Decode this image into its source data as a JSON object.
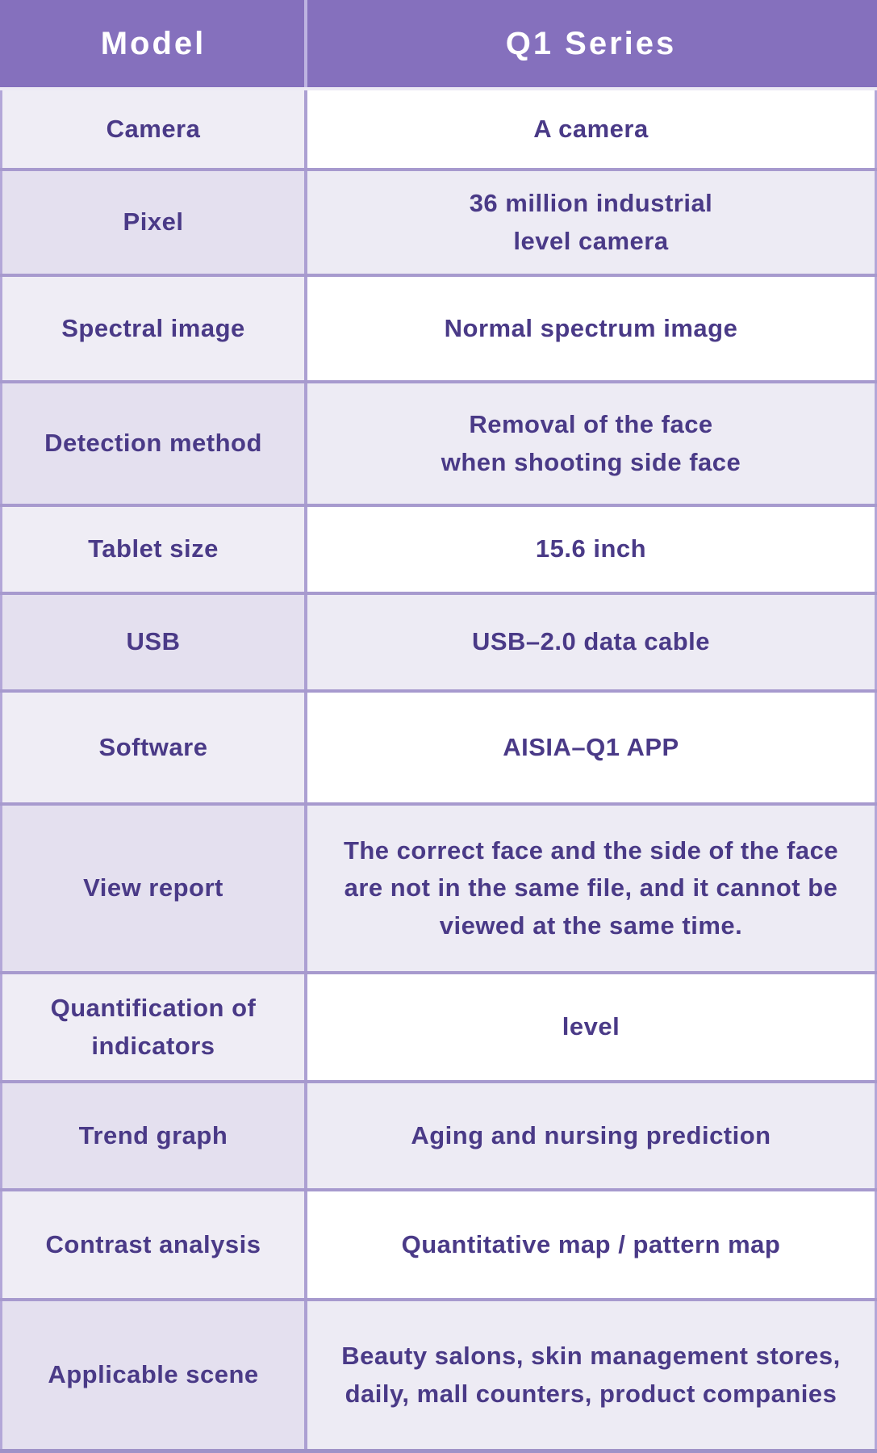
{
  "table": {
    "header": {
      "model_label": "Model",
      "series_label": "Q1 Series"
    },
    "rows": [
      {
        "label": "Camera",
        "value": "A camera"
      },
      {
        "label": "Pixel",
        "value": "36 million industrial\nlevel camera"
      },
      {
        "label": "Spectral image",
        "value": "Normal spectrum image"
      },
      {
        "label": "Detection method",
        "value": "Removal of the face\nwhen shooting side face"
      },
      {
        "label": "Tablet size",
        "value": "15.6 inch"
      },
      {
        "label": "USB",
        "value": "USB–2.0 data cable"
      },
      {
        "label": "Software",
        "value": "AISIA–Q1 APP"
      },
      {
        "label": "View report",
        "value": "The correct face and the side of the face are not in the same file, and it cannot be viewed at the same time."
      },
      {
        "label": "Quantification of\nindicators",
        "value": "level"
      },
      {
        "label": "Trend graph",
        "value": "Aging and nursing prediction"
      },
      {
        "label": "Contrast analysis",
        "value": "Quantitative map / pattern map"
      },
      {
        "label": "Applicable scene",
        "value": "Beauty salons, skin management stores, daily, mall counters, product companies"
      }
    ],
    "colors": {
      "header_bg": "#8570bd",
      "header_text": "#ffffff",
      "body_text": "#4a3a87",
      "row_a_label_bg": "#efedf5",
      "row_a_value_bg": "#ffffff",
      "row_b_label_bg": "#e4e0ef",
      "row_b_value_bg": "#edebf4",
      "border": "#a79ace"
    }
  }
}
